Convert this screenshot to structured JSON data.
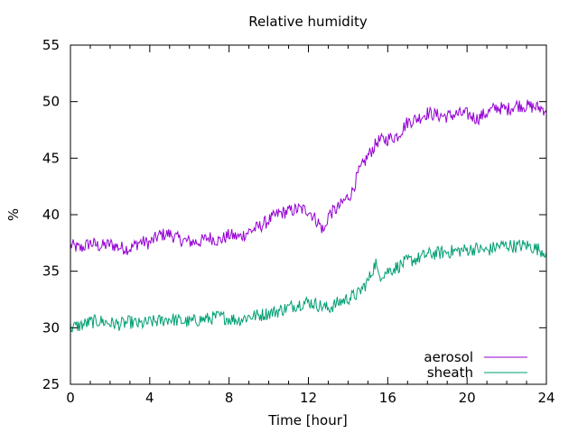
{
  "chart_data": {
    "type": "line",
    "title": "Relative humidity",
    "xlabel": "Time [hour]",
    "ylabel": "%",
    "xlim": [
      0,
      24
    ],
    "ylim": [
      25,
      55
    ],
    "xticks": [
      "0",
      "4",
      "8",
      "12",
      "16",
      "20",
      "24"
    ],
    "yticks": [
      "25",
      "30",
      "35",
      "40",
      "45",
      "50",
      "55"
    ],
    "grid": false,
    "legend_position": "bottom-right",
    "series": [
      {
        "name": "aerosol",
        "color": "#9400d3",
        "x": [
          0,
          0.5,
          1,
          1.5,
          2,
          2.5,
          3,
          3.5,
          4,
          4.5,
          5,
          5.5,
          6,
          6.5,
          7,
          7.5,
          8,
          8.5,
          9,
          9.5,
          10,
          10.5,
          11,
          11.5,
          12,
          12.5,
          12.8,
          13,
          13.5,
          14,
          14.2,
          14.5,
          15,
          15.5,
          16,
          16.5,
          17,
          17.5,
          18,
          18.5,
          19,
          19.5,
          20,
          20.5,
          21,
          21.5,
          22,
          22.5,
          23,
          23.5,
          24
        ],
        "y": [
          37.3,
          37.0,
          37.5,
          37.2,
          37.4,
          37.1,
          37.0,
          37.6,
          37.5,
          38.2,
          38.3,
          37.8,
          37.6,
          37.6,
          38.0,
          37.7,
          38.2,
          38.0,
          38.5,
          38.9,
          39.5,
          40.1,
          40.3,
          40.5,
          40.4,
          39.3,
          38.5,
          40.0,
          40.6,
          41.6,
          42.0,
          43.6,
          45.2,
          46.5,
          46.7,
          47.0,
          48.2,
          48.5,
          49.0,
          48.8,
          48.7,
          48.9,
          48.9,
          48.5,
          49.0,
          49.5,
          49.3,
          49.7,
          49.6,
          49.5,
          49.3
        ]
      },
      {
        "name": "sheath",
        "color": "#009e73",
        "x": [
          0,
          0.5,
          1,
          1.5,
          2,
          2.5,
          3,
          3.5,
          4,
          4.5,
          5,
          5.5,
          6,
          6.5,
          7,
          7.5,
          8,
          8.5,
          9,
          9.5,
          10,
          10.5,
          11,
          11.5,
          12,
          12.5,
          13,
          13.5,
          14,
          14.5,
          15,
          15.4,
          15.5,
          16,
          16.5,
          17,
          17.5,
          18,
          18.5,
          19,
          19.5,
          20,
          20.5,
          21,
          21.5,
          22,
          22.5,
          23,
          23.5,
          24
        ],
        "y": [
          30.0,
          30.2,
          30.5,
          30.6,
          30.4,
          30.3,
          30.5,
          30.3,
          30.5,
          30.6,
          30.8,
          30.6,
          30.5,
          30.7,
          30.8,
          31.0,
          30.8,
          30.7,
          31.0,
          31.1,
          31.3,
          31.5,
          31.8,
          32.1,
          32.3,
          32.0,
          31.7,
          32.2,
          32.6,
          33.0,
          34.1,
          35.8,
          34.6,
          35.0,
          35.4,
          35.9,
          36.1,
          36.5,
          36.6,
          36.7,
          36.8,
          36.9,
          37.0,
          36.8,
          37.2,
          37.3,
          37.2,
          37.3,
          37.0,
          36.7
        ]
      }
    ]
  }
}
